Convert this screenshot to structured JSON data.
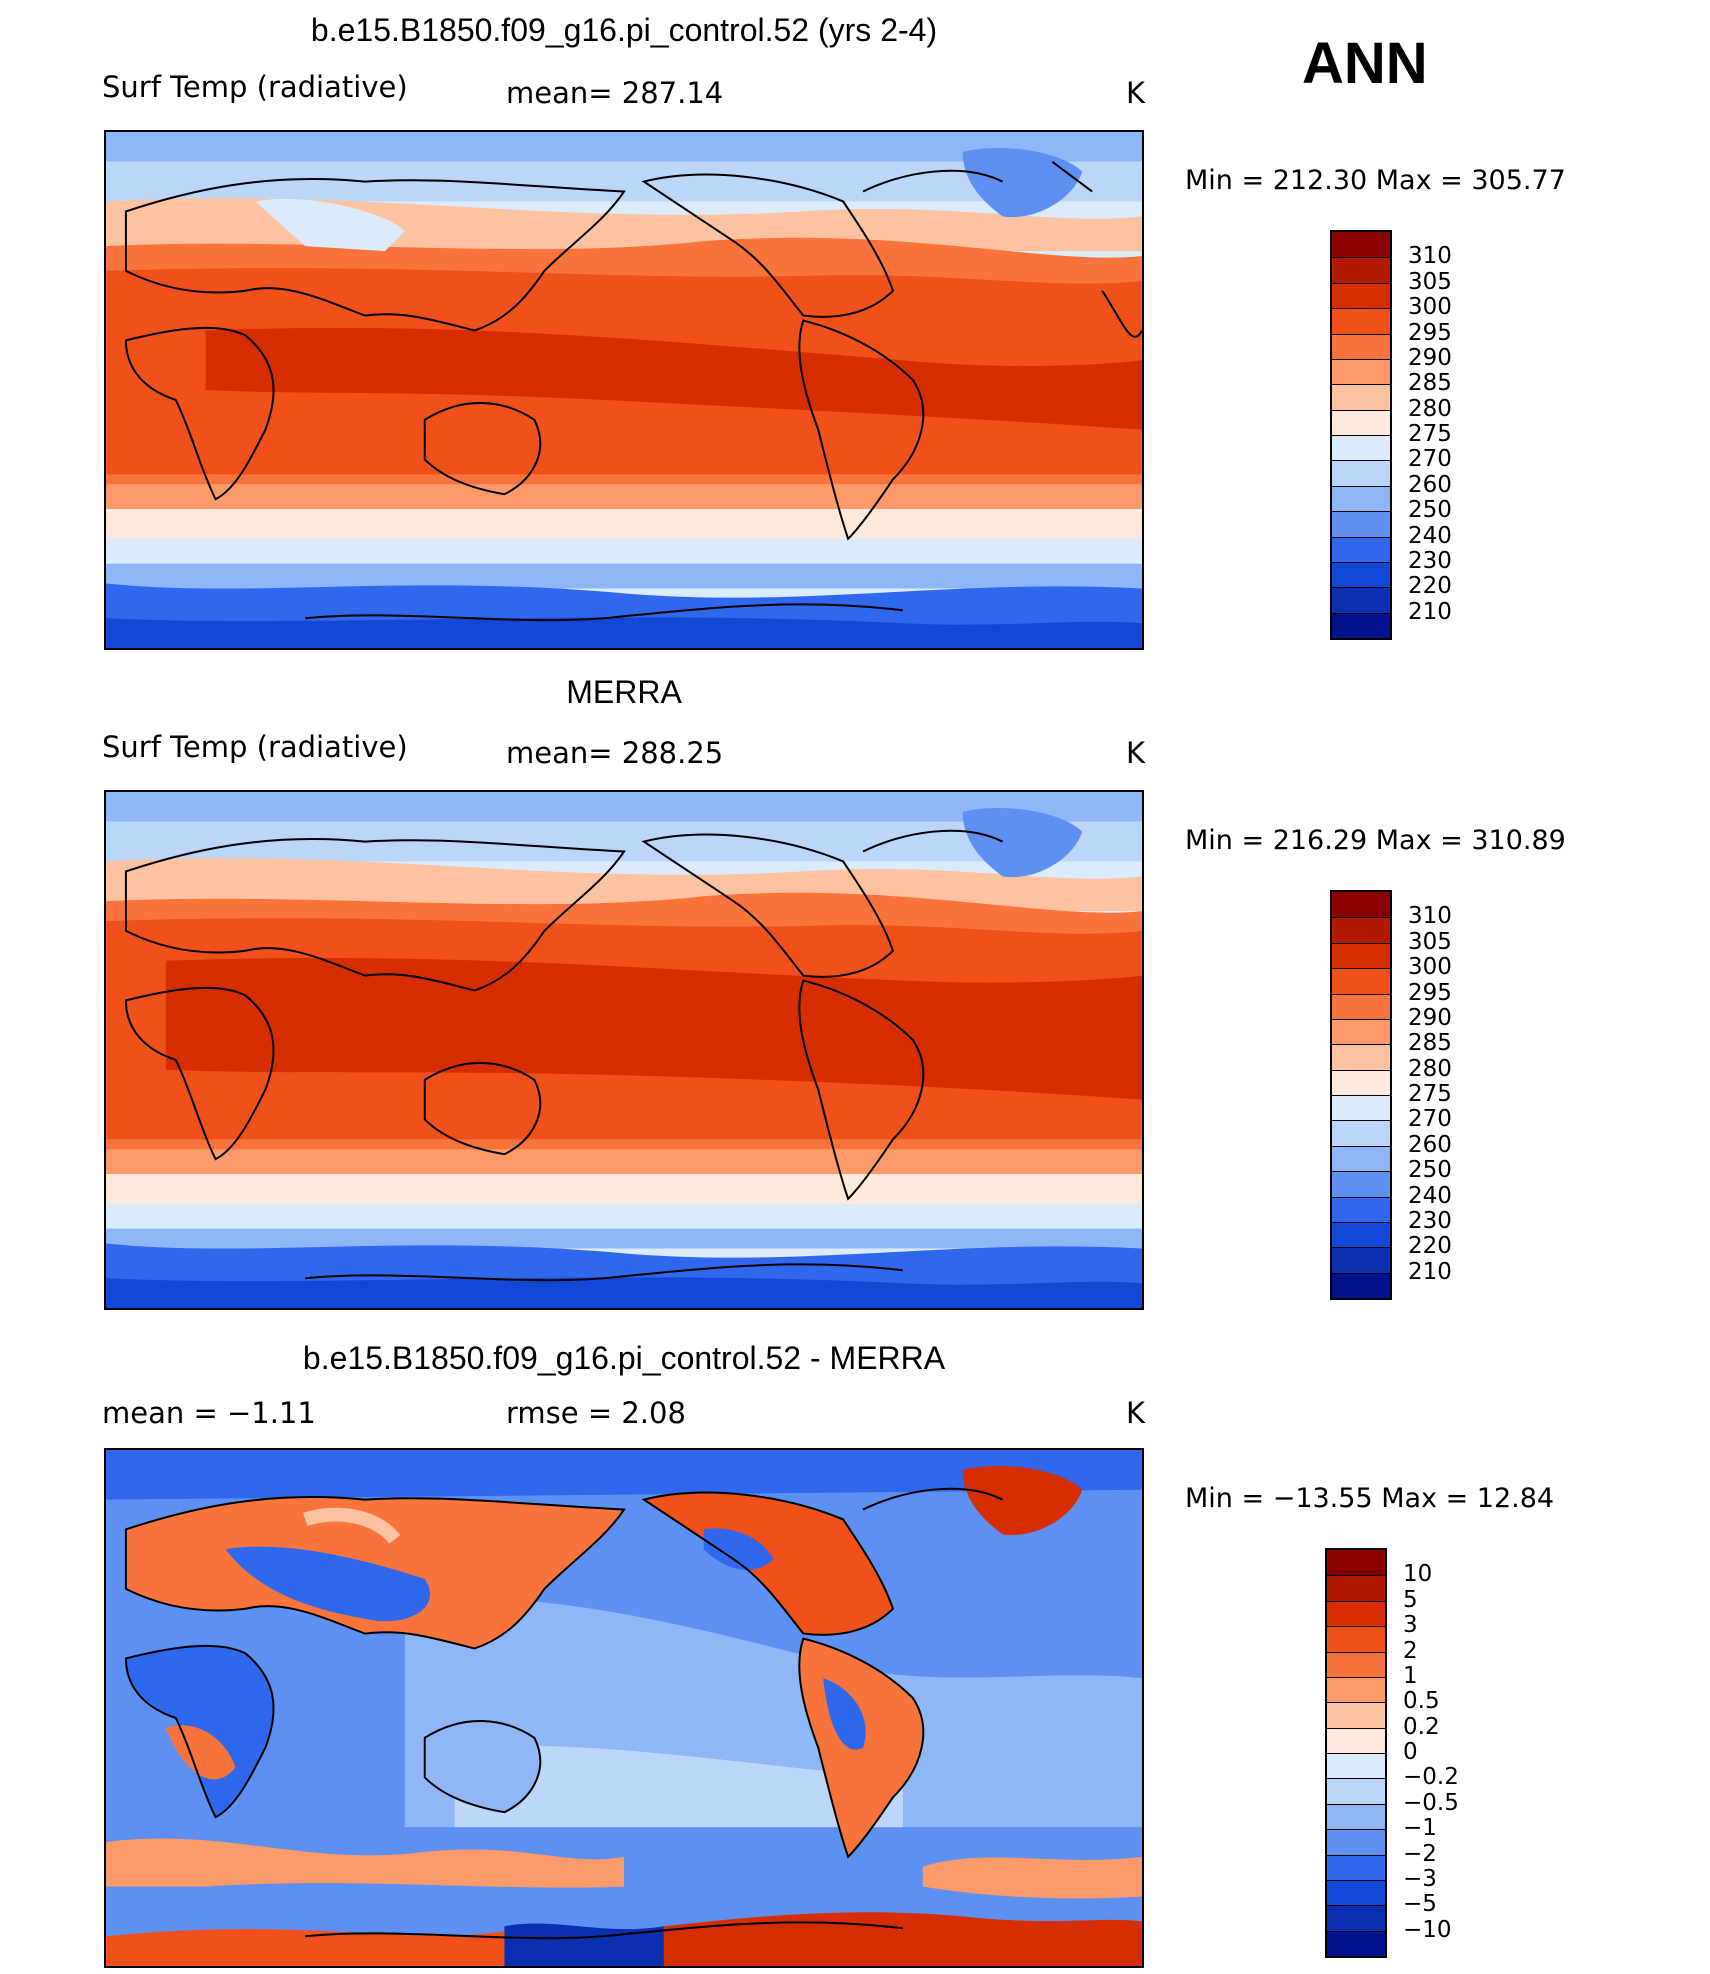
{
  "season": "ANN",
  "panels": [
    {
      "id": "model",
      "title": "b.e15.B1850.f09_g16.pi_control.52 (yrs 2-4)",
      "left_label": "Surf Temp (radiative)",
      "center_label": "mean=  287.14",
      "units": "K",
      "minmax": "Min  =  212.30  Max  =  305.77",
      "colorbar": {
        "labels": [
          "310",
          "305",
          "300",
          "295",
          "290",
          "285",
          "280",
          "275",
          "270",
          "260",
          "250",
          "240",
          "230",
          "220",
          "210"
        ],
        "colors": [
          "#8b0000",
          "#b31800",
          "#d62e00",
          "#f0501a",
          "#f9743d",
          "#fc9a6a",
          "#fdc3a1",
          "#feeadc",
          "#dcebfb",
          "#bcd6fa",
          "#8fb6f7",
          "#5e90f2",
          "#2f68ec",
          "#1347d6",
          "#0a2fb0",
          "#00128c"
        ]
      }
    },
    {
      "id": "obs",
      "title": "MERRA",
      "left_label": "Surf Temp (radiative)",
      "center_label": "mean=  288.25",
      "units": "K",
      "minmax": "Min  =  216.29  Max  =  310.89",
      "colorbar": {
        "labels": [
          "310",
          "305",
          "300",
          "295",
          "290",
          "285",
          "280",
          "275",
          "270",
          "260",
          "250",
          "240",
          "230",
          "220",
          "210"
        ],
        "colors": [
          "#8b0000",
          "#b31800",
          "#d62e00",
          "#f0501a",
          "#f9743d",
          "#fc9a6a",
          "#fdc3a1",
          "#feeadc",
          "#dcebfb",
          "#bcd6fa",
          "#8fb6f7",
          "#5e90f2",
          "#2f68ec",
          "#1347d6",
          "#0a2fb0",
          "#00128c"
        ]
      }
    },
    {
      "id": "diff",
      "title": "b.e15.B1850.f09_g16.pi_control.52 - MERRA",
      "left_label": "mean =    −1.11",
      "center_label": "rmse =     2.08",
      "units": "K",
      "minmax": "Min  = −13.55  Max  =    12.84",
      "colorbar": {
        "labels": [
          "10",
          "5",
          "3",
          "2",
          "1",
          "0.5",
          "0.2",
          "0",
          "−0.2",
          "−0.5",
          "−1",
          "−2",
          "−3",
          "−5",
          "−10"
        ],
        "colors": [
          "#8b0000",
          "#b31800",
          "#d62e00",
          "#f0501a",
          "#f9743d",
          "#fc9a6a",
          "#fdc3a1",
          "#feeadc",
          "#dcebfb",
          "#bcd6fa",
          "#8fb6f7",
          "#5e90f2",
          "#2f68ec",
          "#1347d6",
          "#0a2fb0",
          "#00128c"
        ]
      }
    }
  ]
}
